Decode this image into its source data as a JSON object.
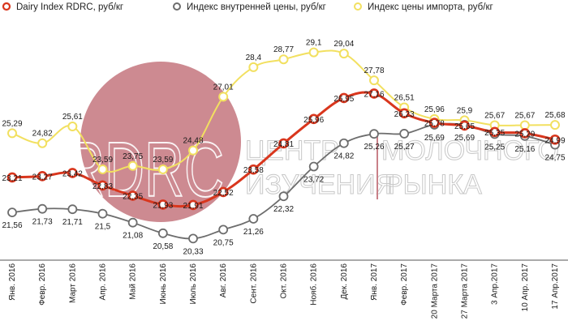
{
  "chart_data": {
    "type": "line",
    "categories": [
      "Янв. 2016",
      "Февр. 2016",
      "Март 2016",
      "Апр. 2016",
      "Май 2016",
      "Июнь 2016",
      "Июль 2016",
      "Авг. 2016",
      "Сент. 2016",
      "Окт. 2016",
      "Нояб. 2016",
      "Дек. 2016",
      "Янв. 2017",
      "Февр. 2017",
      "20 Марта 2017",
      "27 Марта 2017",
      "3 Апр.2017",
      "10 Апр. 2017",
      "17 Апр.2017"
    ],
    "series": [
      {
        "name": "Dairy Index RDRC, руб/кг",
        "color": "#d9361d",
        "values": [
          23.21,
          23.27,
          23.42,
          22.83,
          22.35,
          21.93,
          21.91,
          22.52,
          23.58,
          24.81,
          25.96,
          26.95,
          27.16,
          26.23,
          25.78,
          25.65,
          25.35,
          25.29,
          24.99
        ],
        "labels": [
          "23,21",
          "23,27",
          "23,42",
          "22,83",
          "22,35",
          "21,93",
          "21,91",
          "22,52",
          "23,58",
          "24,81",
          "25,96",
          "26,95",
          "27,16",
          "26,23",
          "25,78",
          "25,65",
          "25,35",
          "25,29",
          "24,99"
        ]
      },
      {
        "name": "Индекс внутренней цены, руб/кг",
        "color": "#6d6d6d",
        "values": [
          21.56,
          21.73,
          21.71,
          21.5,
          21.08,
          20.58,
          20.33,
          20.75,
          21.26,
          22.32,
          23.72,
          24.82,
          25.26,
          25.27,
          25.69,
          25.69,
          25.25,
          25.16,
          24.75
        ],
        "labels": [
          "21,56",
          "21,73",
          "21,71",
          "21,5",
          "21,08",
          "20,58",
          "20,33",
          "20,75",
          "21,26",
          "22,32",
          "23,72",
          "24,82",
          "25,26",
          "25,27",
          "25,69",
          "25,69",
          "25,25",
          "25,16",
          "24,75"
        ]
      },
      {
        "name": "Индекс цены импорта, руб/кг",
        "color": "#f2e060",
        "values": [
          25.29,
          24.82,
          25.61,
          23.59,
          23.75,
          23.59,
          24.48,
          27.01,
          28.4,
          28.77,
          29.1,
          29.04,
          27.78,
          26.51,
          25.96,
          25.9,
          25.67,
          25.67,
          25.68
        ],
        "labels": [
          "25,29",
          "24,82",
          "25,61",
          "23,59",
          "23,75",
          "23,59",
          "24,48",
          "27,01",
          "28,4",
          "28,77",
          "29,1",
          "29,04",
          "27,78",
          "26,51",
          "25,96",
          "25,9",
          "25,67",
          "25,67",
          "25,68"
        ]
      }
    ],
    "legend": "top",
    "grid": false,
    "ylim": [
      19.5,
      30.5
    ]
  },
  "watermark": {
    "logo": "RDRC",
    "line1": "ЦЕНТР",
    "line1b": "МОЛОЧНОГО",
    "line2": "ИЗУЧЕНИЯ",
    "line2b": "РЫНКА"
  }
}
